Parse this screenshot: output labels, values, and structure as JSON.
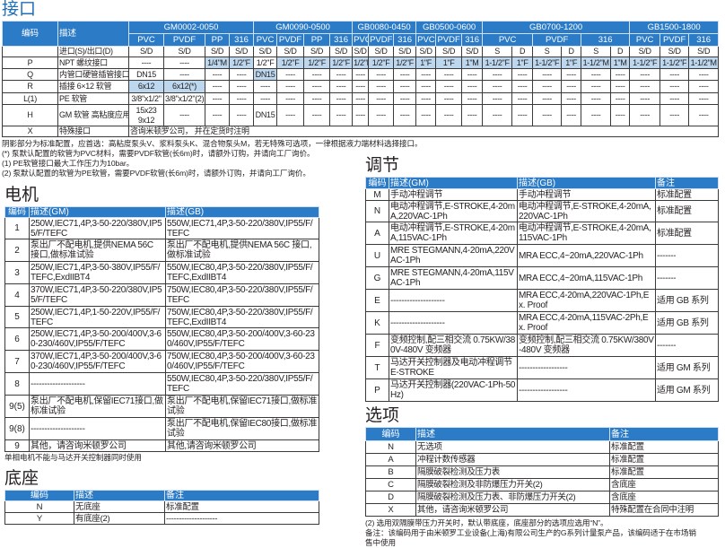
{
  "connection": {
    "title": "接口",
    "head": {
      "code": "编码",
      "desc": "描述"
    },
    "groups": [
      "GM0002-0050",
      "GM0090-0500",
      "GB0080-0450",
      "GB0500-0600",
      "GB0700-1200",
      "GB1500-1800"
    ],
    "materials": [
      "PVC",
      "PVDF",
      "PP",
      "316",
      "PVC",
      "PVDF",
      "PP",
      "316",
      "PVC",
      "PVDF",
      "316",
      "PVC",
      "PVDF",
      "316",
      "PVC",
      "PVDF",
      "316",
      "PVC",
      "PVDF",
      "316"
    ],
    "rows": [
      {
        "code": "",
        "desc": "进口(S)/出口(D)",
        "cells": [
          "S/D",
          "S/D",
          "S/D",
          "S/D",
          "S/D",
          "S/D",
          "S/D",
          "S/D",
          "S/D",
          "S/D",
          "S/D",
          "S/D",
          "S/D",
          "S/D",
          "S",
          "D",
          "S",
          "D",
          "S",
          "D",
          "S/D",
          "S/D",
          "S/D"
        ]
      },
      {
        "code": "P",
        "desc": "NPT 螺纹接口",
        "cells": [
          "----",
          "----",
          "1/4\"M",
          "1/2\"F",
          "1/2\"F",
          "1/2\"F",
          "1/2\"F",
          "1/2\"F",
          "1/2\"F",
          "1/2\"F",
          "1/2\"F",
          "1\"F",
          "1\"F",
          "1\"M",
          "1-1/2\"F",
          "1\"F",
          "1-1/2\"F",
          "1\"F",
          "1-1/2\"M",
          "1\"M",
          "1-1/2\"F",
          "1-1/2\"F",
          "1-1/2\"M"
        ]
      },
      {
        "code": "Q",
        "desc": "内管口硬管插管接口",
        "cells": [
          "DN15",
          "----",
          "----",
          "----",
          "DN15",
          "----",
          "----",
          "----",
          "----",
          "----",
          "----",
          "----",
          "----",
          "----",
          "----",
          "----",
          "----",
          "----",
          "----",
          "----",
          "----",
          "----",
          "----"
        ]
      },
      {
        "code": "R",
        "desc": "插接 6×12 软管",
        "cells": [
          "6x12",
          "6x12(*)",
          "----",
          "----",
          "----",
          "----",
          "----",
          "----",
          "----",
          "----",
          "----",
          "----",
          "----",
          "----",
          "----",
          "----",
          "----",
          "----",
          "----",
          "----",
          "----",
          "----",
          "----"
        ]
      },
      {
        "code": "L(1)",
        "desc": "PE 软管",
        "cells": [
          "3/8\"x1/2\"",
          "3/8\"x1/2\"(2)",
          "----",
          "----",
          "----",
          "----",
          "----",
          "----",
          "----",
          "----",
          "----",
          "----",
          "----",
          "----",
          "----",
          "----",
          "----",
          "----",
          "----",
          "----",
          "----",
          "----",
          "----"
        ]
      },
      {
        "code": "H",
        "desc": "GM 软管 高粘度应用专用",
        "cells": [
          "15x23 9x12",
          "----",
          "----",
          "----",
          "DN15",
          "----",
          "----",
          "----",
          "----",
          "----",
          "----",
          "----",
          "----",
          "----",
          "----",
          "----",
          "----",
          "----",
          "----",
          "----",
          "----",
          "----",
          "----"
        ]
      }
    ],
    "special": {
      "code": "X",
      "desc": "特殊接口",
      "value": "咨询米顿罗公司， 并在定货时注明"
    },
    "notes": [
      "阴影部分为标准配置，应首选：高粘度泵头V、浆料泵头K、混合物泵头M，若无特殊可选项，一律根据液力端材料选择接口。",
      "(*) 泵默认配置的软管为PVC材料，需要PVDF软管(长6m)时，请额外订购，并请向工厂询价。",
      "(1) PE软管接口最大工作压力为10bar。",
      "(2) 泵默认配置的软管为PE软管，需要PVDF软管(长6m)时，请额外订购，并请向工厂询价。"
    ]
  },
  "motor": {
    "title": "电机",
    "head": [
      "编码",
      "描述(GM)",
      "描述(GB)"
    ],
    "rows": [
      [
        "1",
        "250W,IEC71,4P,3-50-220/380V,IP55/F/TEFC",
        "550W,IEC71,4P,3-50-220/380V,IP55/F/TEFC"
      ],
      [
        "2",
        "泵出厂不配电机,提供NEMA 56C 接口,做标准试验",
        "泵出厂不配电机,提供NEMA 56C 接口,做标准试验"
      ],
      [
        "3",
        "250W,IEC71,4P,3-50-380V,IP55/F/TEFC,ExdIIBT4",
        "550W,IEC80,4P,3-50-220/380V,IP55/F/TEFC,ExdIIBT4"
      ],
      [
        "4",
        "370W,IEC71,4P,3-50-220/380V,IP55/F/TEFC",
        "750W,IEC80,4P,3-50-220/380V,IP55/F/TEFC"
      ],
      [
        "5",
        "250W,IEC71,4P,1-50-220V,IP55/F/TEFC",
        "750W,IEC80,4P,3-50-220/380V,IP55/F/TEFC,ExdIIBT4"
      ],
      [
        "6",
        "250W,IEC71,4P,3-50-200/400V,3-60-230/460V,IP55/F/TEFC",
        "550W,IEC80,4P,3-50-200/400V,3-60-230/460V,IP55/F/TEFC"
      ],
      [
        "7",
        "370W,IEC71,4P,3-50-200/400V,3-60-230/460V,IP55/F/TEFC",
        "750W,IEC80,4P,3-50-200/400V,3-60-230/460V,IP55/F/TEFC"
      ],
      [
        "8",
        "--------------------",
        "550W,IEC80,4P,3-50-220/380V,IP55/F/TEFC"
      ],
      [
        "9(5)",
        "泵出厂不配电机,保留IEC71接口,做标准试验",
        "泵出厂不配电机,保留IEC71接口,做标准试验"
      ],
      [
        "9(8)",
        "--------------------",
        "泵出厂不配电机,保留IEC80接口,做标准试验"
      ],
      [
        "9",
        "其他，请咨询米顿罗公司",
        "其他,请咨询米顿罗公司"
      ]
    ],
    "note": "单相电机不能与马达开关控制器同时使用"
  },
  "base": {
    "title": "底座",
    "head": [
      "编码",
      "描述",
      "备注"
    ],
    "rows": [
      [
        "N",
        "无底座",
        "标准配置"
      ],
      [
        "Y",
        "有底座(2)",
        "--------------------"
      ]
    ]
  },
  "adjust": {
    "title": "调节",
    "head": [
      "编码",
      "描述(GM)",
      "描述(GB)",
      "备注"
    ],
    "rows": [
      [
        "M",
        "手动冲程调节",
        "手动冲程调节",
        "标准配置"
      ],
      [
        "N",
        "电动冲程调节,E-STROKE,4-20mA,220VAC-1Ph",
        "电动冲程调节,E-STROKE,4-20mA,220VAC-1Ph",
        "标准配置"
      ],
      [
        "A",
        "电动冲程调节,E-STROKE,4-20mA,115VAC-1Ph",
        "电动冲程调节,E-STROKE,4-20mA,115VAC-1Ph",
        "标准配置"
      ],
      [
        "U",
        "MRE STEGMANN,4-20mA,220VAC-1Ph",
        "MRA ECC,4~20mA,220VAC-1Ph",
        "-------"
      ],
      [
        "G",
        "MRE STEGMANN,4-20mA,115VAC-1Ph",
        "MRA ECC,4~20mA,115VAC-1Ph",
        "-------"
      ],
      [
        "E",
        "--------------------",
        "MRA ECC,4-20mA,220VAC-1Ph,Ex. Proof",
        "适用 GB 系列"
      ],
      [
        "K",
        "--------------------",
        "MRA ECC,4-20mA,115VAC-2Ph,Ex. Proof",
        "适用 GB 系列"
      ],
      [
        "F",
        "变频控制,配三相交流 0.75KW/380V-480V 变频器",
        "变频控制,配三相交流 0.75KW/380V-480V 变频器",
        "-------"
      ],
      [
        "T",
        "马达开关控制器及电动冲程调节E-STROKE",
        "------------------",
        "适用 GM 系列"
      ],
      [
        "P",
        "马达开关控制器(220VAC-1Ph-50Hz)",
        "------------------",
        "适用 GM 系列"
      ]
    ]
  },
  "options": {
    "title": "选项",
    "head": [
      "编码",
      "描述",
      "备注"
    ],
    "rows": [
      [
        "N",
        "无选项",
        "标准配置"
      ],
      [
        "A",
        "冲程计数传感器",
        "标准配置"
      ],
      [
        "B",
        "隔膜破裂检测及压力表",
        "标准配置"
      ],
      [
        "C",
        "隔膜破裂检测及非防爆压力开关(2)",
        "含底座"
      ],
      [
        "D",
        "隔膜破裂检测及压力表、非防爆压力开关(2)",
        "含底座"
      ],
      [
        "X",
        "其他，请咨询米顿罗公司",
        "特殊配置在合同中注明"
      ]
    ],
    "notes": [
      "(2) 选用双隔膜带压力开关时，默认带底座，底座部分的选项应选用“N”。",
      "备注：该编码用于由米顿罗工业设备(上海)有限公司生产的G系列计量泵产品，该编码适于在市场销",
      "售中使用"
    ]
  },
  "colors": {
    "header": "#2c7bc6",
    "shade": "#bcd7ee"
  }
}
